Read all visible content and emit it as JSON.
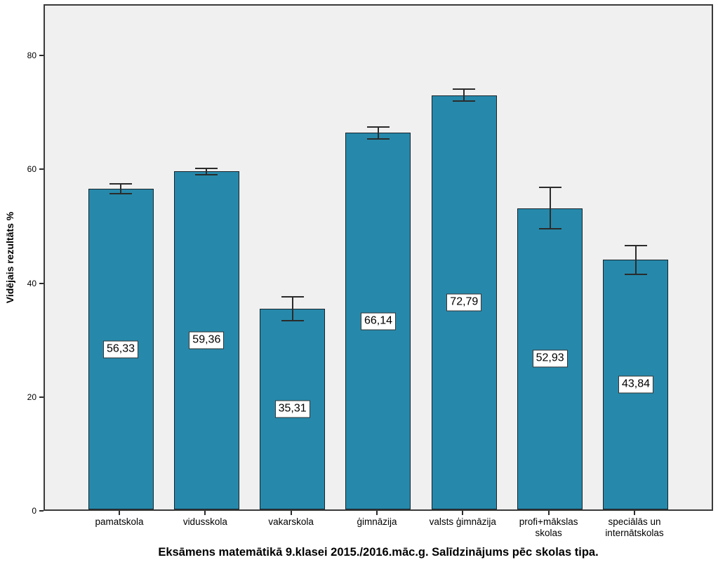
{
  "chart_data": {
    "type": "bar",
    "title": "Eksāmens matemātikā 9.klasei 2015./2016.māc.g. Salīdzinājums pēc skolas tipa.",
    "xlabel": "",
    "ylabel": "Vidējais rezultāts %",
    "categories": [
      "pamatskola",
      "vidusskola",
      "vakarskola",
      "ģimnāzija",
      "valsts ģimnāzija",
      "profi+mākslas\nskolas",
      "speciālās un\ninternātskolas"
    ],
    "values": [
      56.33,
      59.36,
      35.31,
      66.14,
      72.79,
      52.93,
      43.84
    ],
    "value_labels": [
      "56,33",
      "59,36",
      "35,31",
      "66,14",
      "72,79",
      "52,93",
      "43,84"
    ],
    "errors": [
      0.9,
      0.5,
      2.1,
      1.1,
      1.0,
      3.6,
      2.5
    ],
    "yticks": [
      0,
      20,
      40,
      60,
      80
    ],
    "ylim": [
      0,
      89
    ],
    "grid": false,
    "legend": "none",
    "decimal_separator": ",",
    "bar_color": "#2689ab",
    "bar_border_color": "#17232a",
    "plot_background": "#f0f0f0",
    "error_bar_color": "#2b2b2b"
  }
}
